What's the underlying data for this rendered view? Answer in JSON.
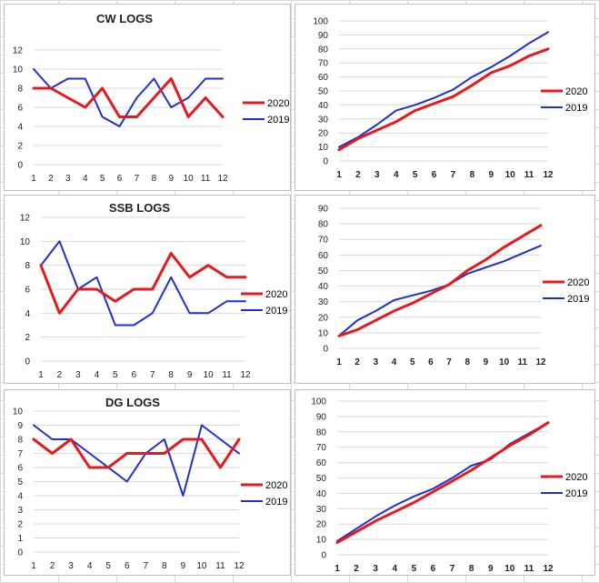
{
  "colors": {
    "s2020": "#e41a1c",
    "s2019": "#1f2fd0",
    "grid": "#d9d9d9"
  },
  "chart_data": [
    {
      "type": "line",
      "title": "CW LOGS",
      "x": [
        1,
        2,
        3,
        4,
        5,
        6,
        7,
        8,
        9,
        10,
        11,
        12
      ],
      "ylim": [
        0,
        12
      ],
      "yticks": [
        0,
        2,
        4,
        6,
        8,
        10,
        12
      ],
      "series": [
        {
          "name": "2020",
          "values": [
            8,
            8,
            7,
            6,
            8,
            5,
            5,
            7,
            9,
            5,
            7,
            5
          ]
        },
        {
          "name": "2019",
          "values": [
            10,
            8,
            9,
            9,
            5,
            4,
            7,
            9,
            6,
            7,
            9,
            9
          ]
        }
      ],
      "legend": "right"
    },
    {
      "type": "line",
      "title": "",
      "x": [
        1,
        2,
        3,
        4,
        5,
        6,
        7,
        8,
        9,
        10,
        11,
        12
      ],
      "ylim": [
        0,
        100
      ],
      "yticks": [
        0,
        10,
        20,
        30,
        40,
        50,
        60,
        70,
        80,
        90,
        100
      ],
      "series": [
        {
          "name": "2020",
          "values": [
            8,
            16,
            22,
            28,
            36,
            41,
            46,
            54,
            63,
            68,
            75,
            80
          ]
        },
        {
          "name": "2019",
          "values": [
            10,
            17,
            26,
            36,
            40,
            45,
            51,
            60,
            67,
            75,
            84,
            92
          ]
        }
      ],
      "legend": "right"
    },
    {
      "type": "line",
      "title": "SSB LOGS",
      "x": [
        1,
        2,
        3,
        4,
        5,
        6,
        7,
        8,
        9,
        10,
        11,
        12
      ],
      "ylim": [
        0,
        12
      ],
      "yticks": [
        0,
        2,
        4,
        6,
        8,
        10,
        12
      ],
      "series": [
        {
          "name": "2020",
          "values": [
            8,
            4,
            6,
            6,
            5,
            6,
            6,
            9,
            7,
            8,
            7,
            7
          ]
        },
        {
          "name": "2019",
          "values": [
            8,
            10,
            6,
            7,
            3,
            3,
            4,
            7,
            4,
            4,
            5,
            5
          ]
        }
      ],
      "legend": "right"
    },
    {
      "type": "line",
      "title": "",
      "x": [
        1,
        2,
        3,
        4,
        5,
        6,
        7,
        8,
        9,
        10,
        11,
        12
      ],
      "ylim": [
        0,
        90
      ],
      "yticks": [
        0,
        10,
        20,
        30,
        40,
        50,
        60,
        70,
        80,
        90
      ],
      "series": [
        {
          "name": "2020",
          "values": [
            8,
            12,
            18,
            24,
            29,
            35,
            41,
            50,
            57,
            65,
            72,
            79
          ]
        },
        {
          "name": "2019",
          "values": [
            8,
            18,
            24,
            31,
            34,
            37,
            41,
            48,
            52,
            56,
            61,
            66
          ]
        }
      ],
      "legend": "right"
    },
    {
      "type": "line",
      "title": "DG LOGS",
      "x": [
        1,
        2,
        3,
        4,
        5,
        6,
        7,
        8,
        9,
        10,
        11,
        12
      ],
      "ylim": [
        0,
        10
      ],
      "yticks": [
        0,
        1,
        2,
        3,
        4,
        5,
        6,
        7,
        8,
        9,
        10
      ],
      "series": [
        {
          "name": "2020",
          "values": [
            8,
            7,
            8,
            6,
            6,
            7,
            7,
            7,
            8,
            8,
            6,
            8
          ]
        },
        {
          "name": "2019",
          "values": [
            9,
            8,
            8,
            7,
            6,
            5,
            7,
            8,
            4,
            9,
            8,
            7
          ]
        }
      ],
      "legend": "right"
    },
    {
      "type": "line",
      "title": "",
      "x": [
        1,
        2,
        3,
        4,
        5,
        6,
        7,
        8,
        9,
        10,
        11,
        12
      ],
      "ylim": [
        0,
        100
      ],
      "yticks": [
        0,
        10,
        20,
        30,
        40,
        50,
        60,
        70,
        80,
        90,
        100
      ],
      "series": [
        {
          "name": "2020",
          "values": [
            8,
            15,
            22,
            28,
            34,
            41,
            48,
            55,
            63,
            71,
            78,
            86
          ]
        },
        {
          "name": "2019",
          "values": [
            9,
            17,
            25,
            32,
            38,
            43,
            50,
            58,
            62,
            72,
            79,
            86
          ]
        }
      ],
      "legend": "right"
    }
  ]
}
